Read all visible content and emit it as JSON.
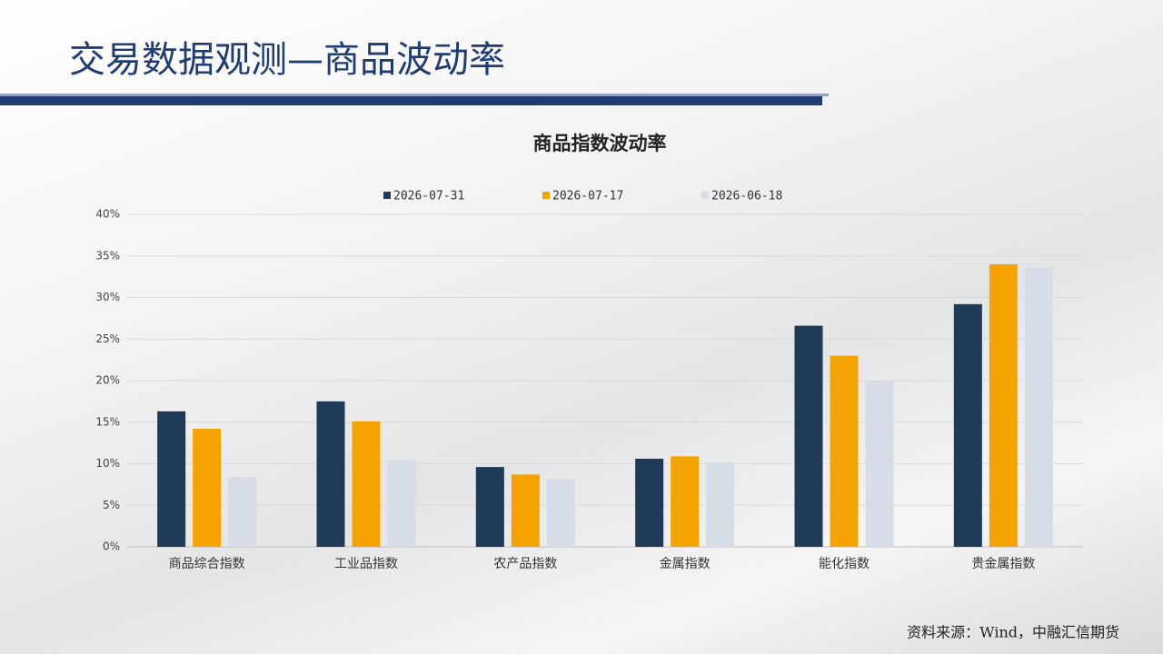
{
  "header": {
    "title": "交易数据观测—商品波动率"
  },
  "chart_data": {
    "type": "bar",
    "title": "商品指数波动率",
    "categories": [
      "商品综合指数",
      "工业品指数",
      "农产品指数",
      "金属指数",
      "能化指数",
      "贵金属指数"
    ],
    "series": [
      {
        "name": "2026-07-31",
        "color": "#1f3a57",
        "values": [
          16.3,
          17.5,
          9.6,
          10.6,
          26.6,
          29.2
        ]
      },
      {
        "name": "2026-07-17",
        "color": "#f5a300",
        "values": [
          14.2,
          15.1,
          8.7,
          10.9,
          23.0,
          34.0
        ]
      },
      {
        "name": "2026-06-18",
        "color": "#d6dde6",
        "values": [
          8.4,
          10.4,
          8.2,
          10.2,
          20.0,
          33.6
        ]
      }
    ],
    "ylim": [
      0,
      40
    ],
    "yticks": [
      {
        "value": 0,
        "label": "0%"
      },
      {
        "value": 5,
        "label": "5%"
      },
      {
        "value": 10,
        "label": "10%"
      },
      {
        "value": 15,
        "label": "15%"
      },
      {
        "value": 20,
        "label": "20%"
      },
      {
        "value": 25,
        "label": "25%"
      },
      {
        "value": 30,
        "label": "30%"
      },
      {
        "value": 35,
        "label": "35%"
      },
      {
        "value": 40,
        "label": "40%"
      }
    ],
    "grid": true,
    "legend": "top"
  },
  "footer": {
    "source": "资料来源：Wind，中融汇信期货"
  }
}
